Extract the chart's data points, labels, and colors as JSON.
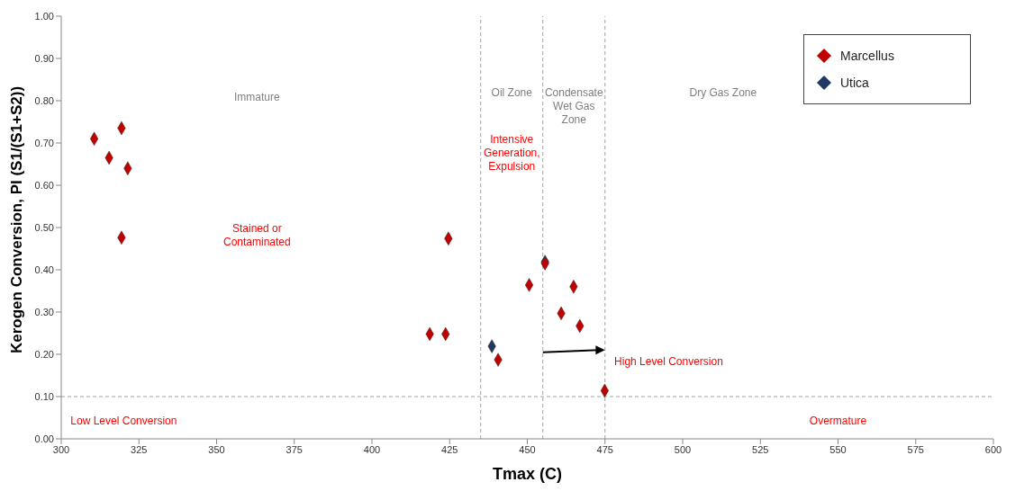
{
  "chart_data": {
    "type": "scatter",
    "xlabel": "Tmax (C)",
    "ylabel": "Kerogen Conversion, PI (S1/(S1+S2))",
    "series": [
      {
        "name": "Marcellus",
        "color": "#c00000",
        "x": [
          310.6,
          319.4,
          315.4,
          321.4,
          319.4,
          424.6,
          418.6,
          423.7,
          440.6,
          450.6,
          455.7,
          464.9,
          460.9,
          466.9,
          474.9
        ],
        "values": [
          0.71,
          0.735,
          0.665,
          0.64,
          0.476,
          0.474,
          0.248,
          0.248,
          0.187,
          0.364,
          0.415,
          0.36,
          0.297,
          0.267,
          0.114
        ]
      },
      {
        "name": "Utica",
        "color": "#1f3864",
        "x": [
          438.6,
          455.7
        ],
        "values": [
          0.219,
          0.419
        ]
      }
    ],
    "marker": "diamond",
    "legend": "top right",
    "grid": false,
    "xlim": [
      300,
      600
    ],
    "xticks": [
      300,
      325,
      350,
      375,
      400,
      425,
      450,
      475,
      500,
      525,
      550,
      575,
      600
    ],
    "ylim": [
      0,
      1
    ],
    "yticks": [
      {
        "value": 0,
        "label": "0.00"
      },
      {
        "value": 0.1,
        "label": "0.10"
      },
      {
        "value": 0.2,
        "label": "0.20"
      },
      {
        "value": 0.3,
        "label": "0.30"
      },
      {
        "value": 0.4,
        "label": "0.40"
      },
      {
        "value": 0.5,
        "label": "0.50"
      },
      {
        "value": 0.6,
        "label": "0.60"
      },
      {
        "value": 0.7,
        "label": "0.70"
      },
      {
        "value": 0.8,
        "label": "0.80"
      },
      {
        "value": 0.9,
        "label": "0.90"
      },
      {
        "value": 1,
        "label": "1.00"
      }
    ],
    "ref_lines": [
      {
        "axis": "y",
        "value": 0.1,
        "color": "#a0a0a0",
        "line_style": "dashed"
      },
      {
        "axis": "x",
        "value": 435,
        "color": "#a0a0a0",
        "line_style": "dashed"
      },
      {
        "axis": "x",
        "value": 455,
        "color": "#a0a0a0",
        "line_style": "dashed"
      },
      {
        "axis": "x",
        "value": 475,
        "color": "#a0a0a0",
        "line_style": "dashed"
      }
    ],
    "annotations": [
      "Immature",
      "Oil Zone",
      "Condensate\nWet Gas\nZone",
      "Dry Gas Zone",
      "Intensive\nGeneration,\nExpulsion",
      "Stained or\nContaminated",
      "High Level Conversion",
      "Low Level Conversion",
      "Overmature"
    ]
  }
}
